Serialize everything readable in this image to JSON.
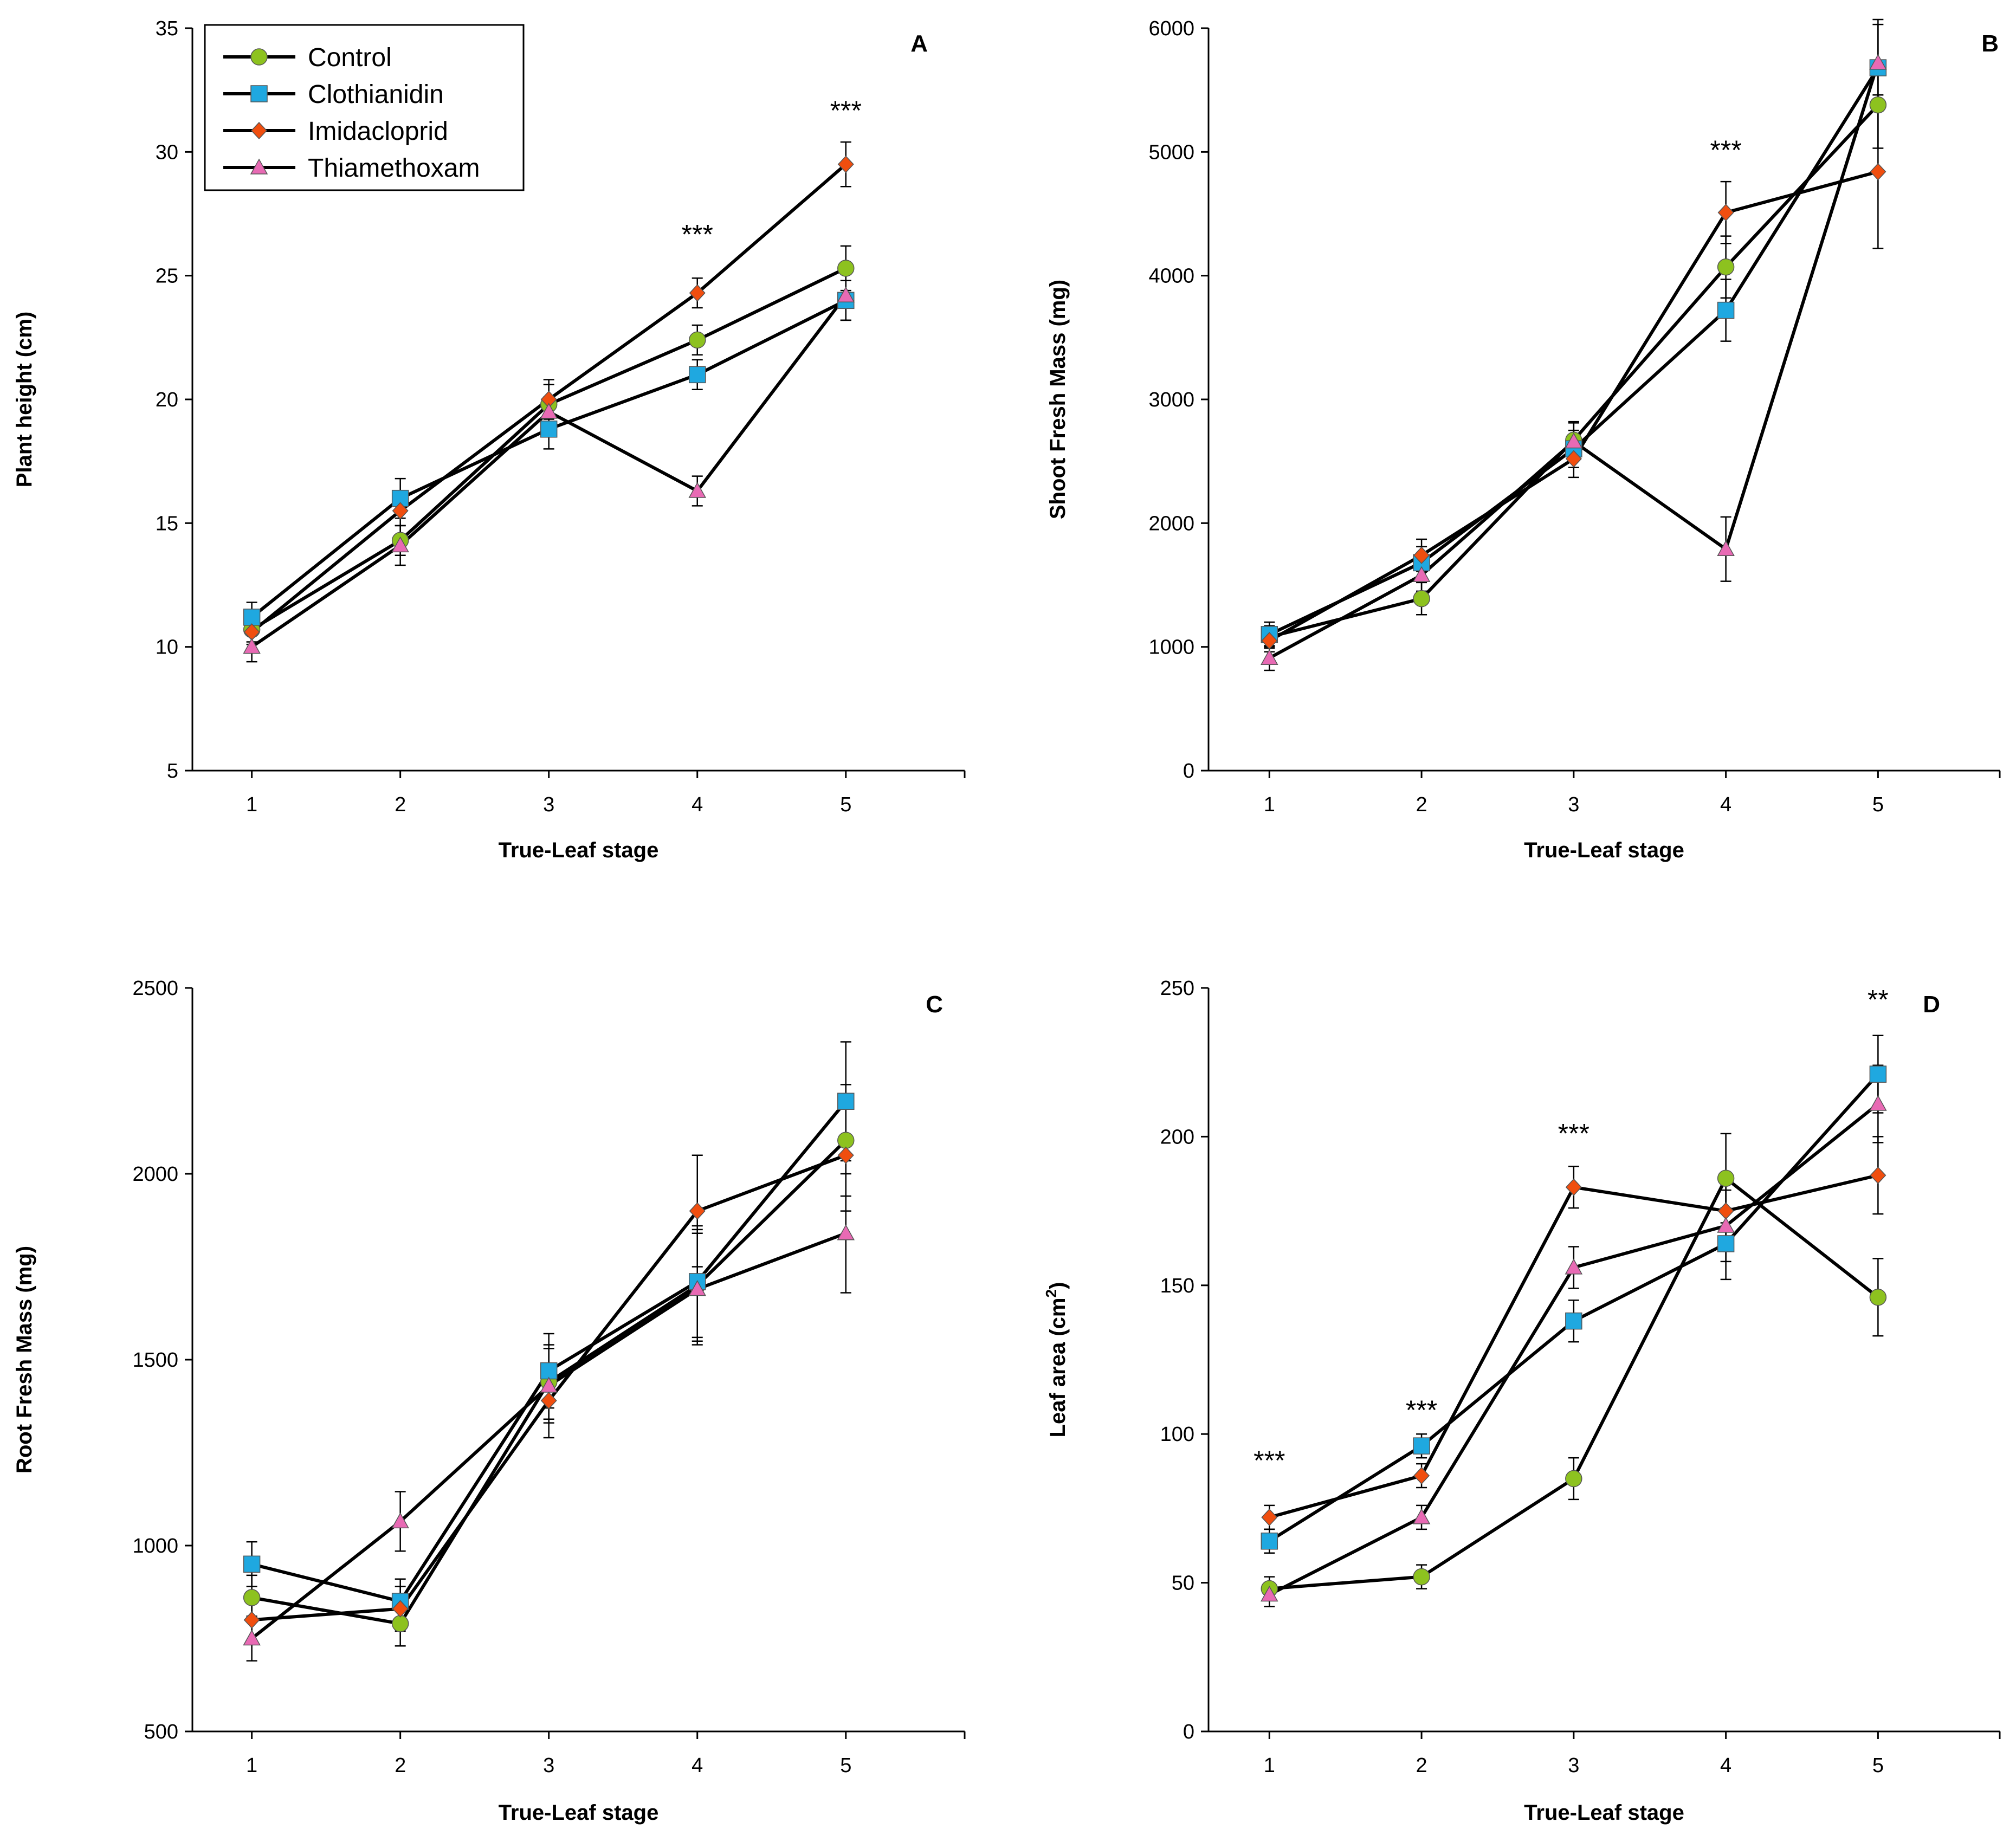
{
  "legend": {
    "entries": [
      {
        "name": "Control",
        "color": "#8dc21f",
        "marker": "circle"
      },
      {
        "name": "Clothianidin",
        "color": "#1fa8e0",
        "marker": "square"
      },
      {
        "name": "Imidacloprid",
        "color": "#f04e0f",
        "marker": "diamond"
      },
      {
        "name": "Thiamethoxam",
        "color": "#e86ab4",
        "marker": "triangle"
      }
    ]
  },
  "chart_data": [
    {
      "panel": "A",
      "type": "line",
      "xlabel": "True-Leaf stage",
      "ylabel": "Plant height (cm)",
      "x": [
        1,
        2,
        3,
        4,
        5
      ],
      "ylim": [
        5,
        35
      ],
      "yticks": [
        5,
        10,
        15,
        20,
        25,
        30,
        35
      ],
      "series": [
        {
          "name": "Control",
          "values": [
            10.7,
            14.3,
            19.8,
            22.4,
            25.3
          ],
          "errors": [
            0.5,
            0.6,
            0.8,
            0.6,
            0.9
          ]
        },
        {
          "name": "Clothianidin",
          "values": [
            11.2,
            16.0,
            18.8,
            21.0,
            24.0
          ],
          "errors": [
            0.6,
            0.8,
            0.8,
            0.6,
            0.8
          ]
        },
        {
          "name": "Imidacloprid",
          "values": [
            10.6,
            15.5,
            20.0,
            24.3,
            29.5
          ],
          "errors": [
            0.5,
            0.6,
            0.8,
            0.6,
            0.9
          ]
        },
        {
          "name": "Thiamethoxam",
          "values": [
            10.0,
            14.1,
            19.5,
            16.3,
            24.2
          ],
          "errors": [
            0.6,
            0.8,
            0.6,
            0.6,
            1.0
          ]
        }
      ],
      "annotations": [
        {
          "x": 4,
          "y": 26.3,
          "text": "***"
        },
        {
          "x": 5,
          "y": 31.3,
          "text": "***"
        }
      ]
    },
    {
      "panel": "B",
      "type": "line",
      "xlabel": "True-Leaf stage",
      "ylabel": "Shoot Fresh Mass (mg)",
      "x": [
        1,
        2,
        3,
        4,
        5
      ],
      "ylim": [
        0,
        6000
      ],
      "yticks": [
        0,
        1000,
        2000,
        3000,
        4000,
        5000,
        6000
      ],
      "series": [
        {
          "name": "Control",
          "values": [
            1080,
            1390,
            2670,
            4070,
            5380
          ],
          "errors": [
            90,
            130,
            150,
            250,
            350
          ]
        },
        {
          "name": "Clothianidin",
          "values": [
            1100,
            1680,
            2600,
            3720,
            5680
          ],
          "errors": [
            100,
            130,
            150,
            250,
            350
          ]
        },
        {
          "name": "Imidacloprid",
          "values": [
            1050,
            1740,
            2520,
            4510,
            4840
          ],
          "errors": [
            90,
            130,
            150,
            250,
            620
          ]
        },
        {
          "name": "Thiamethoxam",
          "values": [
            910,
            1580,
            2660,
            1790,
            5720
          ],
          "errors": [
            100,
            130,
            150,
            260,
            350
          ]
        }
      ],
      "annotations": [
        {
          "x": 4,
          "y": 4940,
          "text": "***"
        }
      ]
    },
    {
      "panel": "C",
      "type": "line",
      "xlabel": "True-Leaf stage",
      "ylabel": "Root Fresh Mass (mg)",
      "x": [
        1,
        2,
        3,
        4,
        5
      ],
      "ylim": [
        500,
        2500
      ],
      "yticks": [
        500,
        1000,
        1500,
        2000,
        2500
      ],
      "series": [
        {
          "name": "Control",
          "values": [
            860,
            790,
            1440,
            1700,
            2090
          ],
          "errors": [
            60,
            60,
            100,
            150,
            150
          ]
        },
        {
          "name": "Clothianidin",
          "values": [
            950,
            850,
            1470,
            1710,
            2195
          ],
          "errors": [
            60,
            60,
            100,
            150,
            160
          ]
        },
        {
          "name": "Imidacloprid",
          "values": [
            800,
            830,
            1390,
            1900,
            2050
          ],
          "errors": [
            60,
            60,
            100,
            150,
            150
          ]
        },
        {
          "name": "Thiamethoxam",
          "values": [
            750,
            1065,
            1430,
            1690,
            1840
          ],
          "errors": [
            60,
            80,
            100,
            150,
            160
          ]
        }
      ],
      "annotations": []
    },
    {
      "panel": "D",
      "type": "line",
      "xlabel": "True-Leaf stage",
      "ylabel": "Leaf area (cm²)",
      "x": [
        1,
        2,
        3,
        4,
        5
      ],
      "ylim": [
        0,
        250
      ],
      "yticks": [
        0,
        50,
        100,
        150,
        200,
        250
      ],
      "series": [
        {
          "name": "Control",
          "values": [
            48,
            52,
            85,
            186,
            146
          ],
          "errors": [
            4,
            4,
            7,
            15,
            13
          ]
        },
        {
          "name": "Clothianidin",
          "values": [
            64,
            96,
            138,
            164,
            221
          ],
          "errors": [
            4,
            4,
            7,
            12,
            13
          ]
        },
        {
          "name": "Imidacloprid",
          "values": [
            72,
            86,
            183,
            175,
            187
          ],
          "errors": [
            4,
            4,
            7,
            12,
            13
          ]
        },
        {
          "name": "Thiamethoxam",
          "values": [
            46,
            72,
            156,
            170,
            211
          ],
          "errors": [
            4,
            4,
            7,
            12,
            13
          ]
        }
      ],
      "annotations": [
        {
          "x": 1,
          "y": 88,
          "text": "***"
        },
        {
          "x": 2,
          "y": 105,
          "text": "***"
        },
        {
          "x": 3,
          "y": 198,
          "text": "***"
        },
        {
          "x": 5,
          "y": 243,
          "text": "**"
        }
      ]
    }
  ]
}
